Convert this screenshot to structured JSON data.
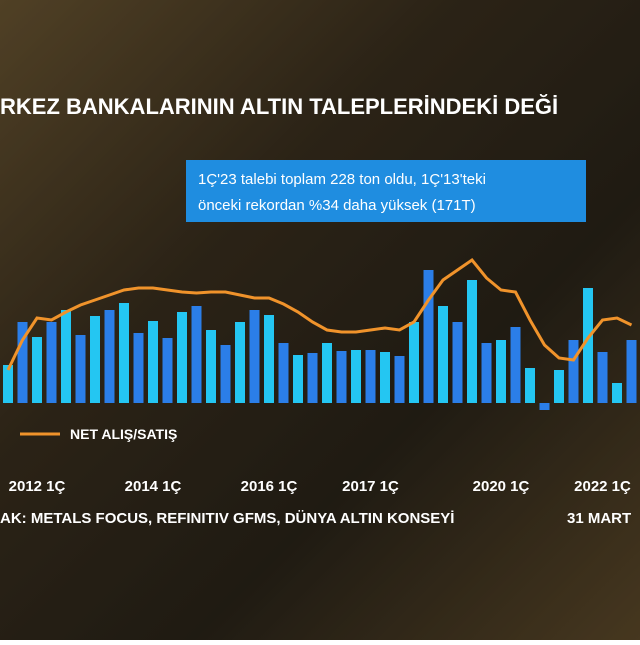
{
  "chart_data": {
    "type": "bar_line",
    "title": "RKEZ BANKALARININ ALTIN TALEPLERİNDEKİ DEĞİ",
    "annotation": [
      "1Ç'23 talebi toplam 228 ton oldu, 1Ç'13'teki",
      "önceki rekordan %34 daha yüksek (171T)"
    ],
    "source": "AK: METALS FOCUS, REFINITIV GFMS, DÜNYA ALTIN KONSEYİ",
    "date": "31 MART",
    "categories": [
      null,
      null,
      "2012 1Ç",
      null,
      null,
      null,
      null,
      null,
      null,
      null,
      "2014 1Ç",
      null,
      null,
      null,
      null,
      null,
      null,
      null,
      "2016 1Ç",
      null,
      null,
      null,
      null,
      null,
      null,
      "2017 1Ç",
      null,
      null,
      null,
      null,
      null,
      null,
      null,
      null,
      "2020 1Ç",
      null,
      null,
      null,
      null,
      null,
      null,
      "2022 1Ç",
      null,
      null
    ],
    "ylim": [
      -100,
      400
    ],
    "series": [
      {
        "name": null,
        "colors": [
          "#24c6f2",
          "#2b7ee8"
        ],
        "values": [
          76,
          162,
          132,
          162,
          186,
          136,
          174,
          186,
          200,
          140,
          164,
          130,
          182,
          194,
          146,
          116,
          162,
          186,
          176,
          120,
          96,
          100,
          120,
          104,
          106,
          106,
          102,
          94,
          162,
          266,
          194,
          162,
          246,
          120,
          126,
          152,
          70,
          -14,
          66,
          126,
          230,
          102,
          40,
          126
        ]
      },
      {
        "name": "NET ALIŞ/SATIŞ",
        "color": "#f0932b",
        "values": [
          66,
          126,
          170,
          166,
          182,
          196,
          206,
          216,
          226,
          230,
          230,
          226,
          222,
          220,
          222,
          222,
          216,
          210,
          210,
          198,
          182,
          162,
          146,
          142,
          142,
          146,
          150,
          146,
          162,
          206,
          246,
          266,
          286,
          250,
          226,
          222,
          166,
          116,
          90,
          86,
          130,
          166,
          170,
          156
        ]
      }
    ]
  }
}
